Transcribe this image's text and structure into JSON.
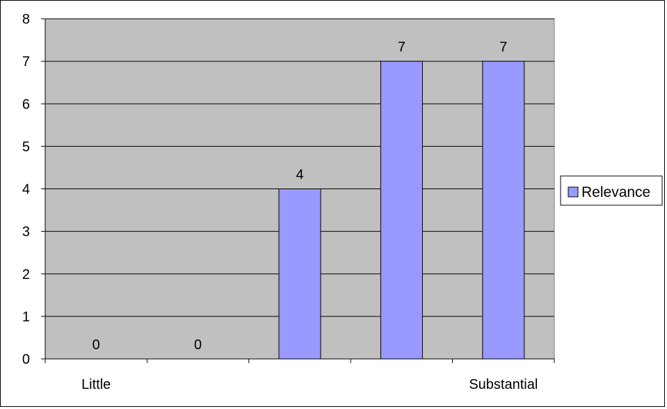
{
  "chart_data": {
    "type": "bar",
    "categories": [
      "Little",
      "",
      "",
      "",
      "Substantial"
    ],
    "series": [
      {
        "name": "Relevance",
        "values": [
          0,
          0,
          4,
          7,
          7
        ],
        "color": "#9999ff"
      }
    ],
    "title": "",
    "xlabel": "",
    "ylabel": "",
    "ylim": [
      0,
      8
    ],
    "yticks": [
      "0",
      "1",
      "2",
      "3",
      "4",
      "5",
      "6",
      "7",
      "8"
    ],
    "grid": true,
    "plot_background": "#c0c0c0",
    "legend_position": "right",
    "data_labels": true
  }
}
